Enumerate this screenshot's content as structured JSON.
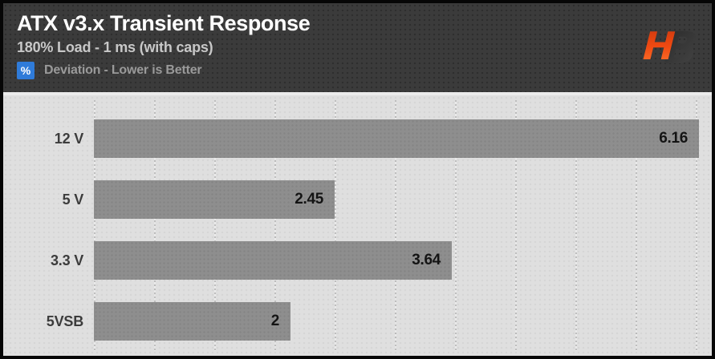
{
  "header": {
    "title": "ATX v3.x Transient Response",
    "subtitle": "180% Load - 1 ms (with caps)",
    "legend_badge": "%",
    "legend_text": "Deviation - Lower is Better",
    "logo_letter_h": "H",
    "logo_letter_b": "B"
  },
  "colors": {
    "badge_blue": "#2f7bd9",
    "header_background": "#3b3b3b",
    "plot_background": "#dfdfdf",
    "bar_gray": "#8e8e8e",
    "value_text": "#141414",
    "logo_orange_top": "#c9370e",
    "logo_orange_bottom": "#ff7a31",
    "logo_gray": "#303030"
  },
  "chart_data": {
    "type": "bar",
    "orientation": "horizontal",
    "title": "ATX v3.x Transient Response",
    "subtitle": "180% Load - 1 ms (with caps)",
    "unit": "%",
    "note": "Deviation - Lower is Better",
    "categories": [
      "12 V",
      "5 V",
      "3.3 V",
      "5VSB"
    ],
    "values": [
      6.16,
      2.45,
      3.64,
      2
    ],
    "value_labels": [
      "6.16",
      "2.45",
      "3.64",
      "2"
    ],
    "xlabel": "",
    "ylabel": "",
    "xlim": [
      0,
      6.29
    ],
    "grid": true,
    "gridline_count": 11,
    "legend_position": "none"
  }
}
